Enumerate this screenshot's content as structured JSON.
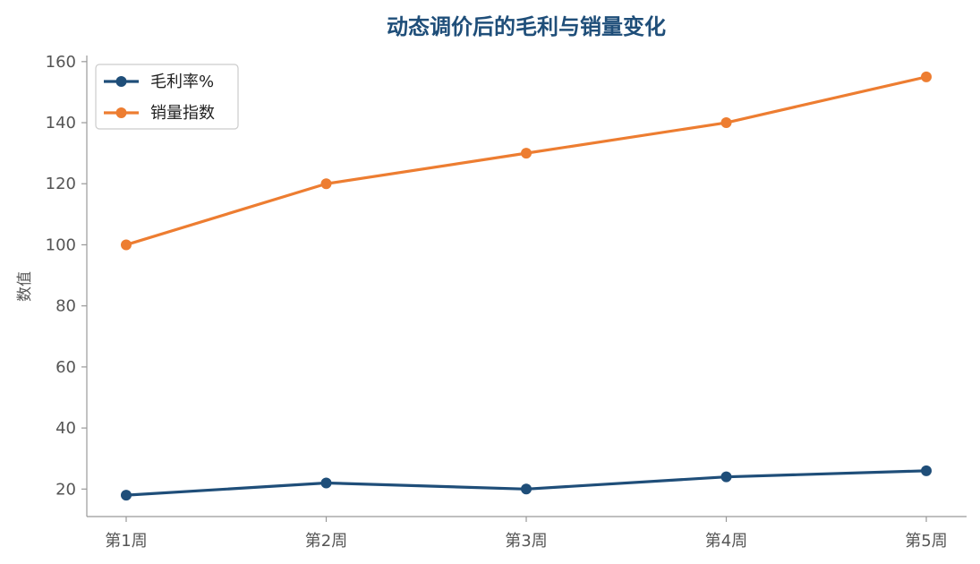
{
  "chart_data": {
    "type": "line",
    "title": "动态调价后的毛利与销量变化",
    "xlabel": "",
    "ylabel": "数值",
    "categories": [
      "第1周",
      "第2周",
      "第3周",
      "第4周",
      "第5周"
    ],
    "ylim": [
      11,
      162
    ],
    "yticks": [
      20,
      40,
      60,
      80,
      100,
      120,
      140,
      160
    ],
    "grid": false,
    "legend_position": "top-left",
    "series": [
      {
        "name": "毛利率%",
        "color": "#1f4e79",
        "values": [
          18,
          22,
          20,
          24,
          26
        ]
      },
      {
        "name": "销量指数",
        "color": "#ed7d31",
        "values": [
          100,
          120,
          130,
          140,
          155
        ]
      }
    ]
  }
}
